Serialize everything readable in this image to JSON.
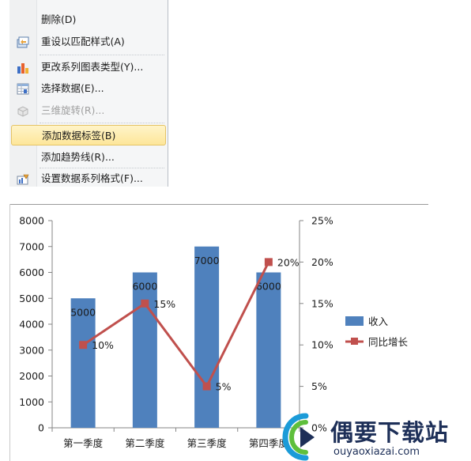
{
  "context_menu": {
    "items": [
      {
        "label": "删除(D)",
        "icon": "",
        "disabled": false,
        "highlighted": false
      },
      {
        "label": "重设以匹配样式(A)",
        "icon": "reset-style-icon",
        "disabled": false,
        "highlighted": false
      },
      {
        "label": "更改系列图表类型(Y)...",
        "icon": "bar-chart-icon",
        "disabled": false,
        "highlighted": false
      },
      {
        "label": "选择数据(E)...",
        "icon": "select-data-icon",
        "disabled": false,
        "highlighted": false
      },
      {
        "label": "三维旋转(R)...",
        "icon": "rotate-3d-icon",
        "disabled": true,
        "highlighted": false
      },
      {
        "label": "添加数据标签(B)",
        "icon": "",
        "disabled": false,
        "highlighted": true
      },
      {
        "label": "添加趋势线(R)...",
        "icon": "",
        "disabled": false,
        "highlighted": false
      },
      {
        "label": "设置数据系列格式(F)...",
        "icon": "format-series-icon",
        "disabled": false,
        "highlighted": false
      }
    ]
  },
  "chart_data": {
    "type": "bar",
    "categories": [
      "第一季度",
      "第二季度",
      "第三季度",
      "第四季度"
    ],
    "series": [
      {
        "name": "收入",
        "type": "bar",
        "axis": "left",
        "values": [
          5000,
          6000,
          7000,
          6000
        ],
        "data_labels": [
          "5000",
          "6000",
          "7000",
          "6000"
        ],
        "color": "#4f81bd"
      },
      {
        "name": "同比增长",
        "type": "line",
        "axis": "right",
        "values": [
          0.1,
          0.15,
          0.05,
          0.2
        ],
        "data_labels": [
          "10%",
          "15%",
          "5%",
          "20%"
        ],
        "color": "#c0504d"
      }
    ],
    "y_left": {
      "min": 0,
      "max": 8000,
      "ticks": [
        "0",
        "1000",
        "2000",
        "3000",
        "4000",
        "5000",
        "6000",
        "7000",
        "8000"
      ]
    },
    "y_right": {
      "min": 0,
      "max": 0.25,
      "ticks": [
        "0%",
        "5%",
        "10%",
        "15%",
        "20%",
        "25%"
      ]
    },
    "legend": {
      "position": "right",
      "entries": [
        "收入",
        "同比增长"
      ]
    },
    "grid": false
  },
  "watermark": {
    "title": "偶要下载站",
    "url": "ouyaoxiazai.com"
  }
}
